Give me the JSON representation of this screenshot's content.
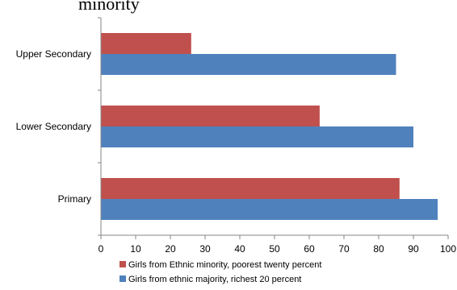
{
  "chart_data": {
    "type": "bar",
    "orientation": "horizontal",
    "title": "minority",
    "categories": [
      "Upper Secondary",
      "Lower Secondary",
      "Primary"
    ],
    "series": [
      {
        "name": "Girls from Ethnic minority, poorest twenty percent",
        "color": "#c0504d",
        "values": [
          26,
          63,
          86
        ]
      },
      {
        "name": "Girls from ethnic majority, richest 20 percent",
        "color": "#4f81bd",
        "values": [
          85,
          90,
          97
        ]
      }
    ],
    "xlim": [
      0,
      100
    ],
    "xticks": [
      "0",
      "10",
      "20",
      "30",
      "40",
      "50",
      "60",
      "70",
      "80",
      "90",
      "100"
    ],
    "grid": false,
    "legend_position": "bottom"
  }
}
